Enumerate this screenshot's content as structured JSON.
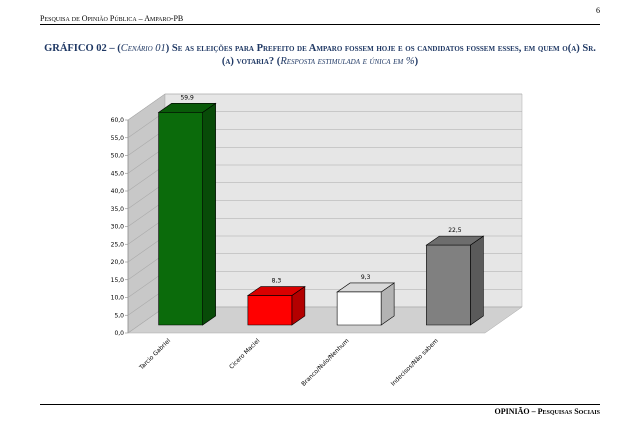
{
  "header": {
    "text": "Pesquisa de Opinião Pública – Amparo-PB",
    "page": "6"
  },
  "heading": [
    "GRÁFICO 02 – (",
    "Cenário 01",
    ") Se as eleições para Prefeito de Amparo fossem hoje e os candidatos fossem esses, em quem o(a) Sr.(a) votaria? (",
    "Resposta estimulada e única em %",
    ")"
  ],
  "footer": "OPINIÃO – Pesquisas Sociais",
  "chart_data": {
    "type": "bar3d",
    "categories": [
      "Tarcio Gabriel",
      "Cicero Maciel",
      "Branco/Nulo/Nenhum",
      "Indecisos/Não sabem"
    ],
    "values": [
      59.9,
      8.3,
      9.3,
      22.5
    ],
    "value_labels": [
      "59,9",
      "8,3",
      "9,3",
      "22,5"
    ],
    "colors": [
      "#0b6b0b",
      "#ff0000",
      "#ffffff",
      "#808080"
    ],
    "ylim": [
      0,
      60
    ],
    "yticks": [
      {
        "value": 0,
        "label": "0,0"
      },
      {
        "value": 5,
        "label": "5,0"
      },
      {
        "value": 10,
        "label": "10,0"
      },
      {
        "value": 15,
        "label": "15,0"
      },
      {
        "value": 20,
        "label": "20,0"
      },
      {
        "value": 25,
        "label": "25,0"
      },
      {
        "value": 30,
        "label": "30,0"
      },
      {
        "value": 35,
        "label": "35,0"
      },
      {
        "value": 40,
        "label": "40,0"
      },
      {
        "value": 45,
        "label": "45,0"
      },
      {
        "value": 50,
        "label": "50,0"
      },
      {
        "value": 55,
        "label": "55,0"
      },
      {
        "value": 60,
        "label": "60,0"
      }
    ],
    "grid": true
  }
}
